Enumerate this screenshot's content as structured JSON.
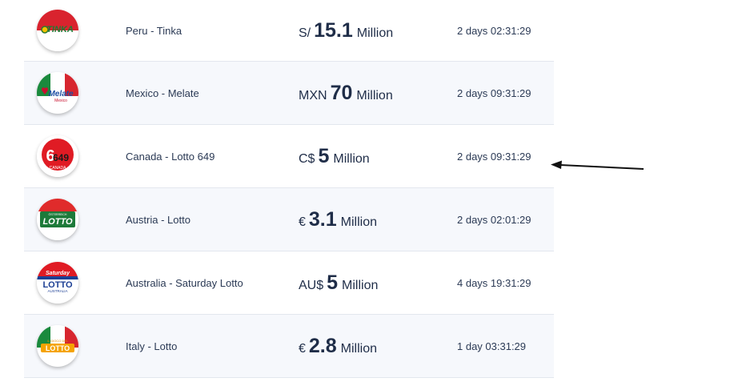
{
  "lotteries": [
    {
      "name": "Peru - Tinka",
      "currency": "S/",
      "amount": "15.1",
      "unit": "Million",
      "countdown": "2 days 02:31:29",
      "logo_icon": "tinka-logo-icon"
    },
    {
      "name": "Mexico - Melate",
      "currency": "MXN",
      "amount": "70",
      "unit": "Million",
      "countdown": "2 days 09:31:29",
      "logo_icon": "melate-logo-icon"
    },
    {
      "name": "Canada - Lotto 649",
      "currency": "C$",
      "amount": "5",
      "unit": "Million",
      "countdown": "2 days 09:31:29",
      "logo_icon": "lotto649-logo-icon"
    },
    {
      "name": "Austria - Lotto",
      "currency": "€",
      "amount": "3.1",
      "unit": "Million",
      "countdown": "2 days 02:01:29",
      "logo_icon": "austria-lotto-logo-icon"
    },
    {
      "name": "Australia - Saturday Lotto",
      "currency": "AU$",
      "amount": "5",
      "unit": "Million",
      "countdown": "4 days 19:31:29",
      "logo_icon": "saturday-lotto-logo-icon"
    },
    {
      "name": "Italy - Lotto",
      "currency": "€",
      "amount": "2.8",
      "unit": "Million",
      "countdown": "1 day 03:31:29",
      "logo_icon": "italy-lotto-logo-icon"
    }
  ],
  "logo_text": {
    "tinka": "TINKA",
    "melate": "Melate",
    "melate_sub": "Mexico",
    "l649": "649",
    "l649_sub": "CANADA",
    "austria_top": "ÖSTERREICH",
    "austria": "LOTTO",
    "sat_top": "Saturday",
    "sat": "LOTTO",
    "sat_sub": "AUSTRALIA",
    "italy_top": "IL GIOCO DEL",
    "italy": "LOTTO"
  },
  "colors": {
    "row_alt": "#f6f8fc",
    "divider": "#e3e7ee",
    "text": "#2b3a55",
    "arrow": "#111111"
  }
}
